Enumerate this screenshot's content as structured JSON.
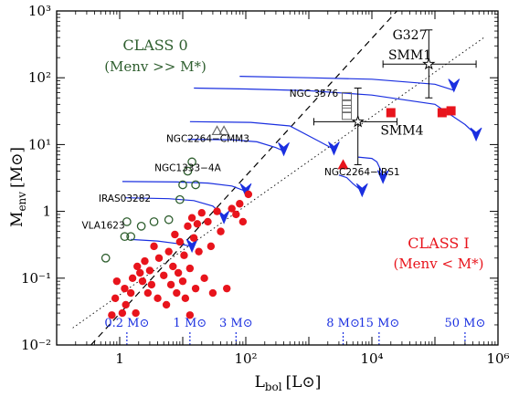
{
  "chart_data": {
    "type": "scatter",
    "x_scale": "log",
    "y_scale": "log",
    "xlim": [
      0.1,
      1000000
    ],
    "ylim": [
      0.01,
      1000
    ],
    "xlabel_main": "L",
    "xlabel_sub": "bol",
    "xlabel_unit": "[L⊙]",
    "ylabel_main": "M",
    "ylabel_sub": "env",
    "ylabel_unit": "[M⊙]",
    "x_ticks": [
      {
        "value": 1,
        "label": "1"
      },
      {
        "value": 100,
        "label": "10²"
      },
      {
        "value": 10000,
        "label": "10⁴"
      },
      {
        "value": 1000000,
        "label": "10⁶"
      }
    ],
    "y_ticks": [
      {
        "value": 0.01,
        "label": "10⁻²"
      },
      {
        "value": 0.1,
        "label": "10⁻¹"
      },
      {
        "value": 1,
        "label": "1"
      },
      {
        "value": 10,
        "label": "10¹"
      },
      {
        "value": 100,
        "label": "10²"
      },
      {
        "value": 1000,
        "label": "10³"
      }
    ],
    "region_labels": [
      {
        "text": "CLASS 0",
        "sub": "(Menv >> M*)",
        "color": "#2e5e2e"
      },
      {
        "text": "CLASS I",
        "sub": "(Menv < M*)",
        "color": "#e8141c"
      }
    ],
    "lines": [
      {
        "style": "dashed",
        "x": [
          0.35,
          25000
        ],
        "y": [
          0.01,
          1000
        ]
      },
      {
        "style": "dotted",
        "x": [
          0.18,
          600000
        ],
        "y": [
          0.018,
          400
        ]
      }
    ],
    "mass_markers": [
      {
        "label": "0.2 M⊙",
        "x": 1.3
      },
      {
        "label": "1 M⊙",
        "x": 13
      },
      {
        "label": "3 M⊙",
        "x": 70
      },
      {
        "label": "8 M⊙",
        "x": 3500
      },
      {
        "label": "15 M⊙",
        "x": 13000
      },
      {
        "label": "50 M⊙",
        "x": 300000
      }
    ],
    "series": [
      {
        "marker": "circle-open",
        "color": "#2e5e2e",
        "x": [
          0.6,
          1.2,
          1.5,
          1.3,
          2.2,
          3.5,
          6.0,
          9.0,
          10.0,
          12.0,
          14.0,
          16.0
        ],
        "y": [
          0.2,
          0.42,
          0.42,
          0.7,
          0.6,
          0.7,
          0.75,
          1.5,
          2.5,
          4.0,
          5.5,
          2.5
        ]
      },
      {
        "marker": "triangle-open",
        "color": "#6b6b6b",
        "x": [
          35,
          45
        ],
        "y": [
          16,
          16
        ]
      },
      {
        "marker": "circle-filled",
        "color": "#e8141c",
        "x": [
          0.75,
          0.85,
          0.9,
          1.1,
          1.2,
          1.25,
          1.5,
          1.6,
          1.8,
          1.9,
          2.1,
          2.3,
          2.5,
          2.8,
          3.0,
          3.2,
          3.5,
          4.0,
          4.2,
          5.0,
          5.5,
          6.0,
          6.5,
          7.0,
          7.5,
          8.0,
          8.5,
          9.0,
          10.0,
          10.5,
          11.0,
          12.0,
          13.0,
          14.0,
          15.0,
          16.0,
          18.0,
          20.0,
          22.0,
          25.0,
          28.0,
          30.0,
          35.0,
          40.0,
          50.0,
          60.0,
          70.0,
          80.0,
          90.0,
          110.0,
          13.0,
          17.0
        ],
        "y": [
          0.028,
          0.05,
          0.09,
          0.03,
          0.07,
          0.04,
          0.06,
          0.1,
          0.03,
          0.15,
          0.12,
          0.09,
          0.18,
          0.06,
          0.13,
          0.08,
          0.3,
          0.05,
          0.2,
          0.11,
          0.04,
          0.25,
          0.08,
          0.15,
          0.45,
          0.06,
          0.12,
          0.35,
          0.09,
          0.22,
          0.05,
          0.6,
          0.14,
          0.8,
          0.4,
          0.07,
          0.25,
          0.95,
          0.1,
          0.7,
          0.3,
          0.06,
          1.0,
          0.5,
          0.07,
          1.1,
          0.9,
          1.3,
          0.7,
          1.8,
          0.028,
          0.65
        ]
      },
      {
        "marker": "square-filled",
        "color": "#e8141c",
        "x": [
          20000,
          130000,
          180000
        ],
        "y": [
          30,
          30,
          32
        ]
      },
      {
        "marker": "triangle-filled",
        "color": "#e8141c",
        "x": [
          3500
        ],
        "y": [
          5
        ]
      },
      {
        "marker": "square-open",
        "color": "#6b6b6b",
        "x": [
          4000,
          4000,
          4000,
          4000
        ],
        "y": [
          27,
          34,
          40,
          53
        ]
      },
      {
        "marker": "star-open",
        "color": "#000000",
        "x": [
          6000,
          80000
        ],
        "y": [
          22,
          160
        ],
        "x_err": [
          [
            1200,
            25000
          ],
          [
            15000,
            450000
          ]
        ],
        "y_err": [
          [
            5,
            70
          ],
          [
            50,
            520
          ]
        ]
      }
    ],
    "tracks": [
      {
        "x": [
          1.5,
          4,
          8,
          14
        ],
        "y": [
          0.38,
          0.36,
          0.33,
          0.3
        ],
        "arrow": [
          14,
          0.28
        ]
      },
      {
        "x": [
          1.2,
          6,
          15,
          30,
          45
        ],
        "y": [
          1.6,
          1.55,
          1.45,
          1.2,
          0.85
        ],
        "arrow": [
          45,
          0.75
        ]
      },
      {
        "x": [
          1.1,
          8,
          25,
          60,
          100
        ],
        "y": [
          2.8,
          2.75,
          2.65,
          2.4,
          2.0
        ],
        "arrow": [
          100,
          1.9
        ]
      },
      {
        "x": [
          12,
          60,
          150,
          300,
          400
        ],
        "y": [
          12,
          11.8,
          11.0,
          9.0,
          8.0
        ],
        "arrow": [
          400,
          7.8
        ]
      },
      {
        "x": [
          13,
          120,
          500,
          1500,
          2500
        ],
        "y": [
          22,
          21.5,
          19.0,
          11.0,
          8.5
        ],
        "arrow": [
          2500,
          8.0
        ]
      },
      {
        "x": [
          3000,
          4000,
          5000,
          7000
        ],
        "y": [
          3.5,
          3.2,
          2.6,
          2.0
        ],
        "arrow": [
          7000,
          1.9
        ]
      },
      {
        "x": [
          6000,
          10000,
          12000,
          15000
        ],
        "y": [
          6.5,
          6.2,
          5.5,
          3.5
        ],
        "arrow": [
          15000,
          3.0
        ]
      },
      {
        "x": [
          80,
          1000,
          10000,
          100000,
          200000
        ],
        "y": [
          105,
          100,
          95,
          80,
          65
        ],
        "arrow": [
          200000,
          70
        ]
      },
      {
        "x": [
          15,
          100,
          1000,
          10000,
          100000,
          300000,
          450000
        ],
        "y": [
          70,
          68,
          64,
          55,
          40,
          20,
          14
        ],
        "arrow": [
          450000,
          13
        ]
      }
    ],
    "annotations": [
      {
        "text": "G327",
        "x": 40000,
        "y": 380
      },
      {
        "text": "SMM1",
        "x": 40000,
        "y": 190
      },
      {
        "text": "NGC 3576",
        "x": 1200,
        "y": 52
      },
      {
        "text": "SMM4",
        "x": 30000,
        "y": 14
      },
      {
        "text": "NGC2264−CMM3",
        "x": 25,
        "y": 11
      },
      {
        "text": "NGC1333−4A",
        "x": 12,
        "y": 4.0
      },
      {
        "text": "IRAS03282",
        "x": 1.2,
        "y": 1.4
      },
      {
        "text": "VLA1623",
        "x": 0.55,
        "y": 0.55
      },
      {
        "text": "NGC2264−IRS1",
        "x": 7000,
        "y": 3.5
      }
    ],
    "colors": {
      "red": "#e8141c",
      "green": "#2e5e2e",
      "blue": "#1a2fe0",
      "gray": "#6b6b6b"
    }
  }
}
